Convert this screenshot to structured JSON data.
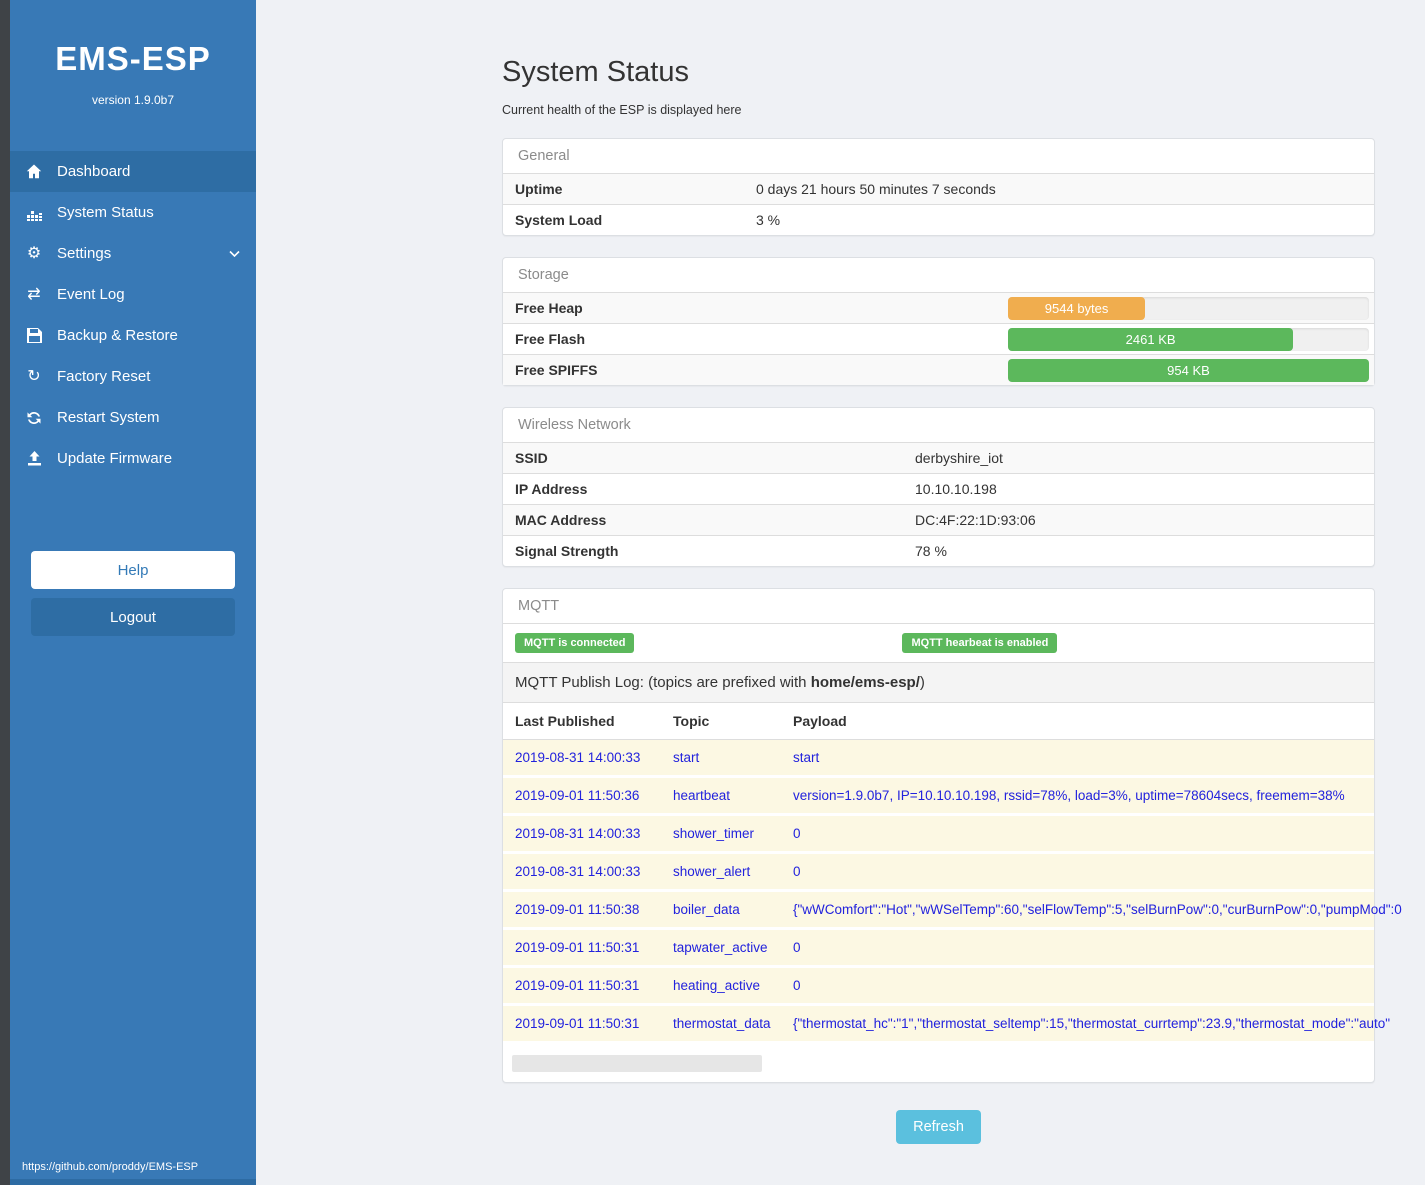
{
  "colors": {
    "sidebar_blue": "#3879b6",
    "active_blue": "#2e6da4",
    "success_green": "#5cb85c",
    "warning_orange": "#f0ad4e",
    "info_blue": "#5bc0de",
    "link_blue": "#2222dd"
  },
  "sidebar": {
    "title": "EMS-ESP",
    "version": "version 1.9.0b7",
    "items": [
      {
        "icon": "home-icon",
        "label": "Dashboard",
        "active": true,
        "chevron": false
      },
      {
        "icon": "chart-icon",
        "label": "System Status",
        "active": false,
        "chevron": false
      },
      {
        "icon": "gear-icon",
        "label": "Settings",
        "active": false,
        "chevron": true
      },
      {
        "icon": "arrows-icon",
        "label": "Event Log",
        "active": false,
        "chevron": false
      },
      {
        "icon": "save-icon",
        "label": "Backup & Restore",
        "active": false,
        "chevron": false
      },
      {
        "icon": "undo-icon",
        "label": "Factory Reset",
        "active": false,
        "chevron": false
      },
      {
        "icon": "sync-icon",
        "label": "Restart System",
        "active": false,
        "chevron": false
      },
      {
        "icon": "upload-icon",
        "label": "Update Firmware",
        "active": false,
        "chevron": false
      }
    ],
    "help_label": "Help",
    "logout_label": "Logout",
    "footer_link": "https://github.com/proddy/EMS-ESP"
  },
  "header": {
    "title": "System Status",
    "subtitle": "Current health of the ESP is displayed here"
  },
  "general": {
    "title": "General",
    "rows": [
      {
        "label": "Uptime",
        "value": "0 days 21 hours 50 minutes 7 seconds"
      },
      {
        "label": "System Load",
        "value": "3 %"
      }
    ]
  },
  "storage": {
    "title": "Storage",
    "rows": [
      {
        "label": "Free Heap",
        "bar_text": "9544 bytes",
        "percent": 38,
        "color_key": "warning_orange"
      },
      {
        "label": "Free Flash",
        "bar_text": "2461 KB",
        "percent": 79,
        "color_key": "success_green"
      },
      {
        "label": "Free SPIFFS",
        "bar_text": "954 KB",
        "percent": 100,
        "color_key": "success_green"
      }
    ]
  },
  "wireless": {
    "title": "Wireless Network",
    "rows": [
      {
        "label": "SSID",
        "value": "derbyshire_iot"
      },
      {
        "label": "IP Address",
        "value": "10.10.10.198"
      },
      {
        "label": "MAC Address",
        "value": "DC:4F:22:1D:93:06"
      },
      {
        "label": "Signal Strength",
        "value": "78 %"
      }
    ]
  },
  "mqtt": {
    "title": "MQTT",
    "badges": [
      "MQTT is connected",
      "MQTT hearbeat is enabled"
    ],
    "log_intro_prefix": "MQTT Publish Log: (topics are prefixed with ",
    "log_topic_prefix": "home/ems-esp/",
    "log_intro_suffix": ")",
    "columns": [
      "Last Published",
      "Topic",
      "Payload"
    ],
    "rows": [
      {
        "time": "2019-08-31 14:00:33",
        "topic": "start",
        "payload": "start"
      },
      {
        "time": "2019-09-01 11:50:36",
        "topic": "heartbeat",
        "payload": "version=1.9.0b7, IP=10.10.10.198, rssid=78%, load=3%, uptime=78604secs, freemem=38%"
      },
      {
        "time": "2019-08-31 14:00:33",
        "topic": "shower_timer",
        "payload": "0"
      },
      {
        "time": "2019-08-31 14:00:33",
        "topic": "shower_alert",
        "payload": "0"
      },
      {
        "time": "2019-09-01 11:50:38",
        "topic": "boiler_data",
        "payload": "{\"wWComfort\":\"Hot\",\"wWSelTemp\":60,\"selFlowTemp\":5,\"selBurnPow\":0,\"curBurnPow\":0,\"pumpMod\":0"
      },
      {
        "time": "2019-09-01 11:50:31",
        "topic": "tapwater_active",
        "payload": "0"
      },
      {
        "time": "2019-09-01 11:50:31",
        "topic": "heating_active",
        "payload": "0"
      },
      {
        "time": "2019-09-01 11:50:31",
        "topic": "thermostat_data",
        "payload": "{\"thermostat_hc\":\"1\",\"thermostat_seltemp\":15,\"thermostat_currtemp\":23.9,\"thermostat_mode\":\"auto\""
      }
    ]
  },
  "refresh_label": "Refresh"
}
